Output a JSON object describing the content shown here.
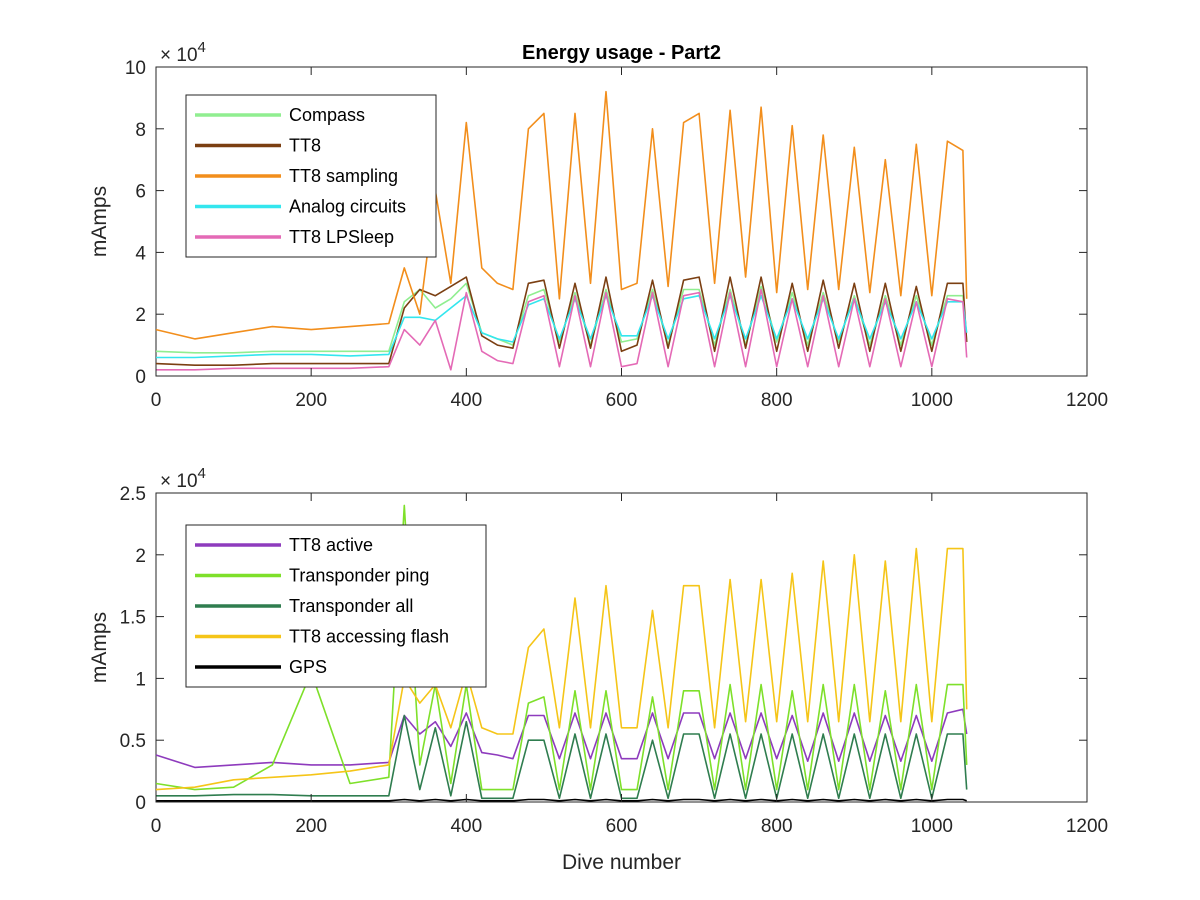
{
  "chart_data": [
    {
      "type": "line",
      "title": "Energy usage - Part2",
      "xlabel": "",
      "ylabel": "mAmps",
      "y_exponent_label": "×10^4",
      "y_exponent_base": "× 10",
      "y_exponent_power": "4",
      "xlim": [
        0,
        1200
      ],
      "ylim": [
        0,
        10
      ],
      "x_ticks": [
        "0",
        "200",
        "400",
        "600",
        "800",
        "1000",
        "1200"
      ],
      "y_ticks": [
        "0",
        "2",
        "4",
        "6",
        "8",
        "10"
      ],
      "grid": false,
      "legend_position": "top-left",
      "x": [
        0,
        50,
        100,
        150,
        200,
        250,
        300,
        320,
        340,
        360,
        380,
        400,
        420,
        440,
        460,
        480,
        500,
        520,
        540,
        560,
        580,
        600,
        620,
        640,
        660,
        680,
        700,
        720,
        740,
        760,
        780,
        800,
        820,
        840,
        860,
        880,
        900,
        920,
        940,
        960,
        980,
        1000,
        1020,
        1040,
        1045
      ],
      "series": [
        {
          "name": "Compass",
          "color": "#90ee90",
          "values": [
            0.8,
            0.75,
            0.75,
            0.8,
            0.8,
            0.8,
            0.8,
            2.4,
            2.8,
            2.2,
            2.5,
            3.0,
            1.4,
            1.2,
            1.0,
            2.6,
            2.8,
            1.1,
            2.7,
            1.0,
            2.8,
            1.1,
            1.2,
            2.8,
            1.0,
            2.8,
            2.8,
            1.0,
            2.8,
            1.0,
            2.9,
            1.1,
            2.7,
            1.0,
            2.7,
            1.1,
            2.6,
            1.0,
            2.6,
            1.0,
            2.6,
            1.0,
            2.6,
            2.6,
            1.1
          ]
        },
        {
          "name": "TT8",
          "color": "#7b3f12",
          "values": [
            0.4,
            0.35,
            0.35,
            0.4,
            0.4,
            0.4,
            0.4,
            2.2,
            2.8,
            2.6,
            2.9,
            3.2,
            1.3,
            1.0,
            0.9,
            3.0,
            3.1,
            0.9,
            3.0,
            0.9,
            3.2,
            0.8,
            1.0,
            3.1,
            0.9,
            3.1,
            3.2,
            0.8,
            3.2,
            0.9,
            3.2,
            0.8,
            3.0,
            0.8,
            3.1,
            0.9,
            3.0,
            0.8,
            3.0,
            0.8,
            2.9,
            0.8,
            3.0,
            3.0,
            1.1
          ]
        },
        {
          "name": "TT8 sampling",
          "color": "#f28e1c",
          "values": [
            1.5,
            1.2,
            1.4,
            1.6,
            1.5,
            1.6,
            1.7,
            3.5,
            2.0,
            6.0,
            3.0,
            8.2,
            3.5,
            3.0,
            2.8,
            8.0,
            8.5,
            2.5,
            8.5,
            3.0,
            9.2,
            2.8,
            3.0,
            8.0,
            2.9,
            8.2,
            8.5,
            3.0,
            8.6,
            3.2,
            8.7,
            2.7,
            8.1,
            2.8,
            7.8,
            2.8,
            7.4,
            2.7,
            7.0,
            2.6,
            7.5,
            2.6,
            7.6,
            7.3,
            2.5
          ]
        },
        {
          "name": "Analog circuits",
          "color": "#33e6ee",
          "values": [
            0.6,
            0.6,
            0.65,
            0.7,
            0.7,
            0.65,
            0.7,
            1.9,
            1.9,
            1.8,
            2.2,
            2.6,
            1.4,
            1.2,
            1.1,
            2.3,
            2.5,
            1.2,
            2.5,
            1.2,
            2.6,
            1.3,
            1.3,
            2.6,
            1.2,
            2.5,
            2.6,
            1.2,
            2.6,
            1.2,
            2.6,
            1.2,
            2.5,
            1.2,
            2.5,
            1.2,
            2.5,
            1.2,
            2.4,
            1.2,
            2.4,
            1.2,
            2.4,
            2.4,
            1.4
          ]
        },
        {
          "name": "TT8 LPSleep",
          "color": "#e46ab6",
          "values": [
            0.2,
            0.2,
            0.25,
            0.25,
            0.25,
            0.25,
            0.3,
            1.5,
            1.0,
            1.8,
            0.2,
            2.7,
            0.8,
            0.5,
            0.4,
            2.4,
            2.6,
            0.3,
            2.6,
            0.3,
            2.7,
            0.3,
            0.4,
            2.7,
            0.3,
            2.6,
            2.7,
            0.3,
            2.7,
            0.3,
            2.8,
            0.3,
            2.5,
            0.3,
            2.6,
            0.3,
            2.5,
            0.3,
            2.5,
            0.3,
            2.4,
            0.3,
            2.5,
            2.4,
            0.6
          ]
        }
      ]
    },
    {
      "type": "line",
      "title": "",
      "xlabel": "Dive number",
      "ylabel": "mAmps",
      "y_exponent_label": "×10^4",
      "y_exponent_base": "× 10",
      "y_exponent_power": "4",
      "xlim": [
        0,
        1200
      ],
      "ylim": [
        0,
        2.5
      ],
      "x_ticks": [
        "0",
        "200",
        "400",
        "600",
        "800",
        "1000",
        "1200"
      ],
      "y_ticks": [
        "0",
        "0.5",
        "1",
        "1.5",
        "2",
        "2.5"
      ],
      "grid": false,
      "legend_position": "top-left",
      "x": [
        0,
        50,
        100,
        150,
        200,
        250,
        300,
        320,
        340,
        360,
        380,
        400,
        420,
        440,
        460,
        480,
        500,
        520,
        540,
        560,
        580,
        600,
        620,
        640,
        660,
        680,
        700,
        720,
        740,
        760,
        780,
        800,
        820,
        840,
        860,
        880,
        900,
        920,
        940,
        960,
        980,
        1000,
        1020,
        1040,
        1045
      ],
      "series": [
        {
          "name": "TT8 active",
          "color": "#8e3bbd",
          "values": [
            0.38,
            0.28,
            0.3,
            0.32,
            0.3,
            0.3,
            0.32,
            0.7,
            0.55,
            0.65,
            0.45,
            0.72,
            0.4,
            0.38,
            0.35,
            0.7,
            0.7,
            0.35,
            0.72,
            0.35,
            0.72,
            0.35,
            0.35,
            0.72,
            0.35,
            0.72,
            0.72,
            0.35,
            0.72,
            0.35,
            0.72,
            0.35,
            0.7,
            0.33,
            0.72,
            0.33,
            0.72,
            0.33,
            0.7,
            0.33,
            0.7,
            0.33,
            0.72,
            0.75,
            0.55
          ]
        },
        {
          "name": "Transponder ping",
          "color": "#7ee02a",
          "values": [
            0.15,
            0.1,
            0.12,
            0.3,
            1.05,
            0.15,
            0.2,
            2.4,
            0.3,
            0.95,
            0.15,
            0.95,
            0.1,
            0.1,
            0.1,
            0.8,
            0.85,
            0.1,
            0.9,
            0.1,
            0.9,
            0.1,
            0.1,
            0.85,
            0.1,
            0.9,
            0.9,
            0.1,
            0.95,
            0.1,
            0.95,
            0.1,
            0.9,
            0.1,
            0.95,
            0.1,
            0.95,
            0.1,
            0.9,
            0.1,
            0.95,
            0.1,
            0.95,
            0.95,
            0.3
          ]
        },
        {
          "name": "Transponder all",
          "color": "#2f7d4f",
          "values": [
            0.05,
            0.05,
            0.06,
            0.06,
            0.05,
            0.05,
            0.05,
            0.7,
            0.1,
            0.6,
            0.05,
            0.65,
            0.03,
            0.03,
            0.03,
            0.5,
            0.5,
            0.03,
            0.55,
            0.03,
            0.55,
            0.03,
            0.03,
            0.5,
            0.03,
            0.55,
            0.55,
            0.03,
            0.55,
            0.03,
            0.55,
            0.03,
            0.55,
            0.03,
            0.55,
            0.03,
            0.55,
            0.03,
            0.55,
            0.03,
            0.55,
            0.03,
            0.55,
            0.55,
            0.1
          ]
        },
        {
          "name": "TT8 accessing flash",
          "color": "#f5c518",
          "values": [
            0.1,
            0.12,
            0.18,
            0.2,
            0.22,
            0.25,
            0.3,
            1.0,
            0.8,
            0.95,
            0.6,
            1.05,
            0.6,
            0.55,
            0.55,
            1.25,
            1.4,
            0.6,
            1.65,
            0.6,
            1.75,
            0.6,
            0.6,
            1.55,
            0.6,
            1.75,
            1.75,
            0.6,
            1.8,
            0.65,
            1.8,
            0.65,
            1.85,
            0.65,
            1.95,
            0.65,
            2.0,
            0.65,
            1.95,
            0.65,
            2.05,
            0.65,
            2.05,
            2.05,
            0.75
          ]
        },
        {
          "name": "GPS",
          "color": "#000000",
          "values": [
            0.01,
            0.01,
            0.01,
            0.01,
            0.01,
            0.01,
            0.01,
            0.02,
            0.01,
            0.02,
            0.01,
            0.02,
            0.01,
            0.01,
            0.01,
            0.02,
            0.02,
            0.01,
            0.02,
            0.01,
            0.02,
            0.01,
            0.01,
            0.02,
            0.01,
            0.02,
            0.02,
            0.01,
            0.02,
            0.01,
            0.02,
            0.01,
            0.02,
            0.01,
            0.02,
            0.01,
            0.02,
            0.01,
            0.02,
            0.01,
            0.02,
            0.01,
            0.02,
            0.02,
            0.01
          ]
        }
      ]
    }
  ]
}
